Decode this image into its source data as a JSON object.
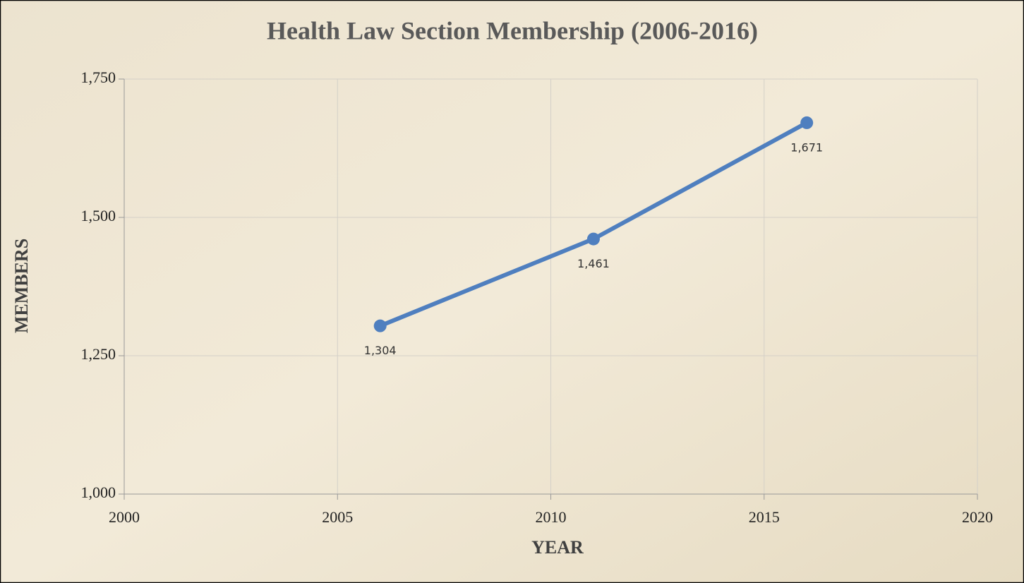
{
  "chart_data": {
    "type": "line",
    "title": "Health Law Section Membership (2006-2016)",
    "x_label": "YEAR",
    "y_label": "MEMBERS",
    "x": [
      2006,
      2011,
      2016
    ],
    "series": [
      {
        "name": "Members",
        "color": "#4f7fbf",
        "values": [
          1304,
          1461,
          1671
        ],
        "value_labels": [
          "1,304",
          "1,461",
          "1,671"
        ]
      }
    ],
    "xlim": [
      2000,
      2020
    ],
    "xticks": [
      2000,
      2005,
      2010,
      2015,
      2020
    ],
    "ylim": [
      1000,
      1750
    ],
    "yticks": [
      {
        "value": 1000,
        "label": "1,000"
      },
      {
        "value": 1250,
        "label": "1,250"
      },
      {
        "value": 1500,
        "label": "1,500"
      },
      {
        "value": 1750,
        "label": "1,750"
      }
    ],
    "grid": true
  }
}
